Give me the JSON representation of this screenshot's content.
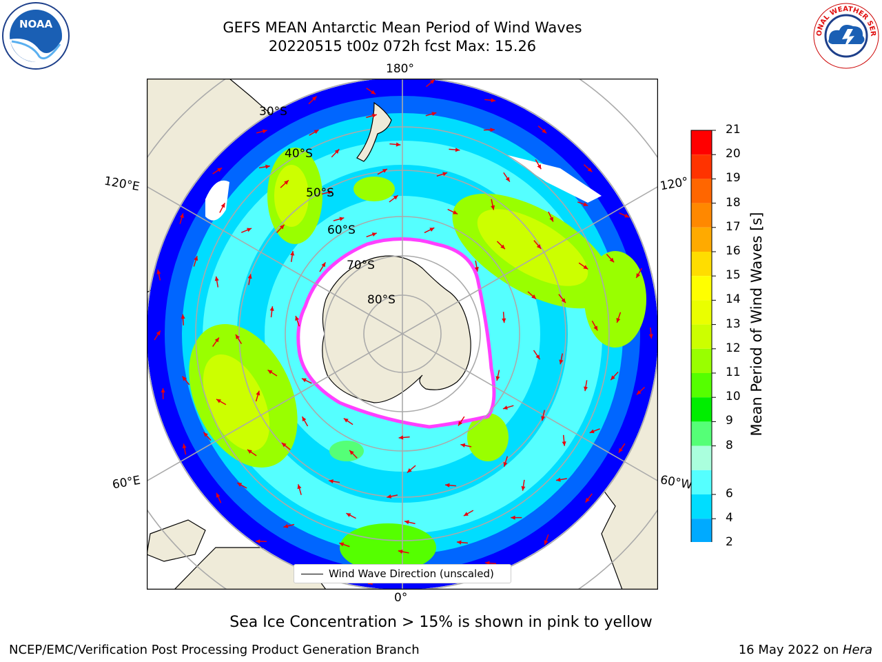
{
  "title": {
    "line1": "GEFS MEAN Antarctic Mean Period of Wind Waves",
    "line2": "20220515 t00z 072h fcst   Max: 15.26"
  },
  "map": {
    "projection": "south polar stereographic",
    "lon_labels": {
      "top": "180°",
      "bottom": "0°",
      "left_upper": "120°E",
      "left_lower": "60°E",
      "right_upper": "120°",
      "right_lower": "60°W"
    },
    "lat_labels": [
      "30°S",
      "40°S",
      "50°S",
      "60°S",
      "70°S",
      "80°S"
    ],
    "legend_label": "Wind Wave Direction (unscaled)",
    "land_color": "#efebd9",
    "arrow_color": "#e8000b",
    "sea_ice_color": "#ff40ff"
  },
  "colorbar": {
    "label": "Mean Period of Wind Waves [s]",
    "ticks": [
      "21",
      "20",
      "19",
      "18",
      "17",
      "16",
      "15",
      "14",
      "13",
      "12",
      "11",
      "10",
      "9",
      "8",
      "6",
      "4",
      "2"
    ],
    "colors": [
      "#ff0000",
      "#ff3300",
      "#ff6600",
      "#ff8800",
      "#ffaa00",
      "#ffdd00",
      "#ffff00",
      "#eaff00",
      "#ccff00",
      "#99ff00",
      "#55ff00",
      "#00ee00",
      "#55ff77",
      "#aaffdd",
      "#55ffff",
      "#00ddff",
      "#00aaff",
      "#0066ff"
    ],
    "extend_color": "#0000ff"
  },
  "footnote": "Sea Ice Concentration > 15% is shown in pink to yellow",
  "credit": "NCEP/EMC/Verification Post Processing Product Generation Branch",
  "run_date": "16 May 2022 on ",
  "run_host": "Hera",
  "logos": {
    "left": "NOAA",
    "right": "NATIONAL WEATHER SERVICE"
  }
}
